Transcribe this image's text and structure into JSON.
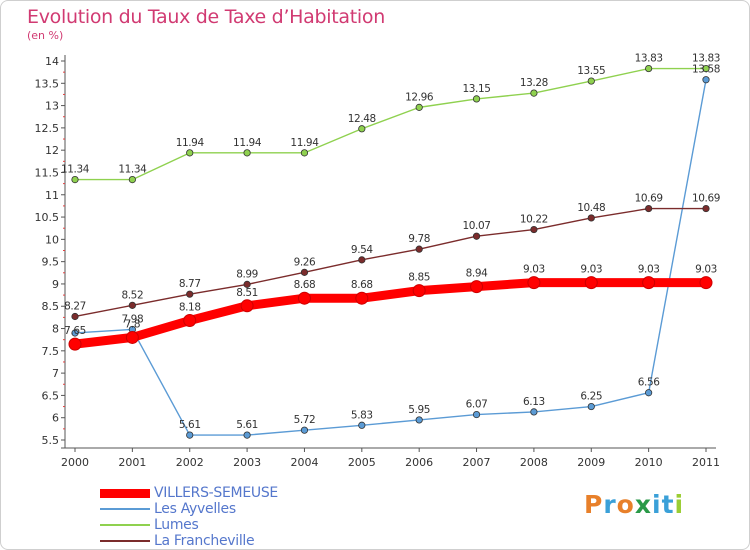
{
  "header": {
    "title": "Evolution du Taux de Taxe d’Habitation",
    "subtitle": "(en %)"
  },
  "chart_data": {
    "type": "line",
    "title": "Evolution du Taux de Taxe d’Habitation",
    "ylabel": "(en %)",
    "xlabel": "",
    "ylim": [
      5.5,
      14
    ],
    "y_ticks": [
      "5.5",
      "6",
      "6.5",
      "7",
      "7.5",
      "8",
      "8.5",
      "9",
      "9.5",
      "10",
      "10.5",
      "11",
      "11.5",
      "12",
      "12.5",
      "13",
      "13.5",
      "14"
    ],
    "categories": [
      "2000",
      "2001",
      "2002",
      "2003",
      "2004",
      "2005",
      "2006",
      "2007",
      "2008",
      "2009",
      "2010",
      "2011"
    ],
    "grid": false,
    "legend_position": "bottom-left",
    "series": [
      {
        "name": "VILLERS-SEMEUSE",
        "color": "#ff0000",
        "values": [
          7.65,
          7.8,
          8.18,
          8.51,
          8.68,
          8.68,
          8.85,
          8.94,
          9.03,
          9.03,
          9.03,
          9.03
        ],
        "labels": [
          "7.65",
          "7.8",
          "8.18",
          "8.51",
          "8.68",
          "8.68",
          "8.85",
          "8.94",
          "9.03",
          "9.03",
          "9.03",
          "9.03"
        ]
      },
      {
        "name": "Les Ayvelles",
        "color": "#5b9bd5",
        "values": [
          7.9,
          7.98,
          5.61,
          5.61,
          5.72,
          5.83,
          5.95,
          6.07,
          6.13,
          6.25,
          6.56,
          13.58
        ],
        "labels": [
          "",
          "7.98",
          "5.61",
          "5.61",
          "5.72",
          "5.83",
          "5.95",
          "6.07",
          "6.13",
          "6.25",
          "6.56",
          "13.58"
        ]
      },
      {
        "name": "Lumes",
        "color": "#8fd14f",
        "values": [
          11.34,
          11.34,
          11.94,
          11.94,
          11.94,
          12.48,
          12.96,
          13.15,
          13.28,
          13.55,
          13.83,
          13.83
        ],
        "labels": [
          "11.34",
          "11.34",
          "11.94",
          "11.94",
          "11.94",
          "12.48",
          "12.96",
          "13.15",
          "13.28",
          "13.55",
          "13.83",
          "13.83"
        ]
      },
      {
        "name": "La Francheville",
        "color": "#7b2c2c",
        "values": [
          8.27,
          8.52,
          8.77,
          8.99,
          9.26,
          9.54,
          9.78,
          10.07,
          10.22,
          10.48,
          10.69,
          10.69
        ],
        "labels": [
          "8.27",
          "8.52",
          "8.77",
          "8.99",
          "9.26",
          "9.54",
          "9.78",
          "10.07",
          "10.22",
          "10.48",
          "10.69",
          "10.69"
        ]
      }
    ]
  },
  "legend": {
    "items": [
      {
        "label": "VILLERS-SEMEUSE",
        "color": "#ff0000",
        "text_color": "#5577cc"
      },
      {
        "label": "Les Ayvelles",
        "color": "#5b9bd5",
        "text_color": "#5577cc"
      },
      {
        "label": "Lumes",
        "color": "#8fd14f",
        "text_color": "#5577cc"
      },
      {
        "label": "La Francheville",
        "color": "#7b2c2c",
        "text_color": "#5577cc"
      }
    ]
  },
  "logo": {
    "text": "Proxiti",
    "letters": [
      "P",
      "r",
      "o",
      "x",
      "i",
      "t",
      "i"
    ],
    "colors": [
      "#e8802a",
      "#3aa0d8",
      "#e8802a",
      "#2a9a48",
      "#3aa0d8",
      "#3aa0d8",
      "#9acd32"
    ]
  }
}
